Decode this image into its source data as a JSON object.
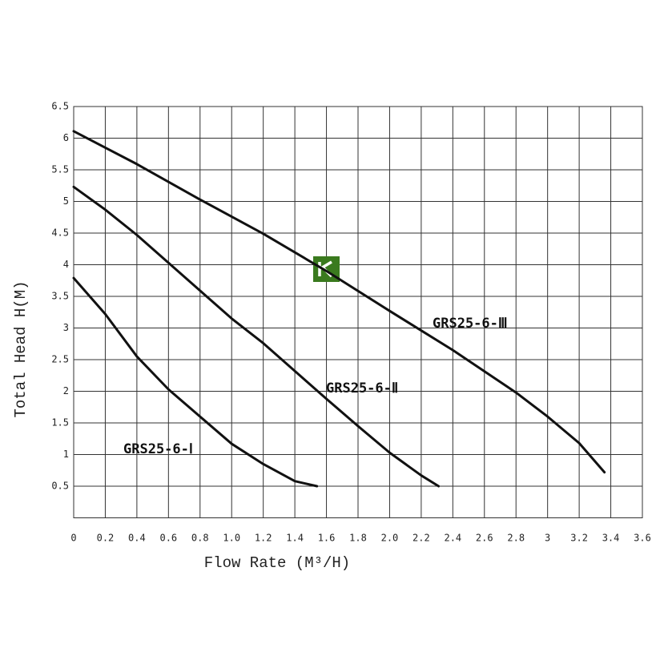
{
  "chart_data": {
    "type": "line",
    "xlabel": "Flow Rate (M³/H)",
    "ylabel": "Total Head H(M)",
    "xlim": [
      0,
      3.6
    ],
    "ylim": [
      0,
      6.5
    ],
    "xticks": [
      0,
      0.2,
      0.4,
      0.6,
      0.8,
      {
        "value": 1,
        "label": "1.0"
      },
      1.2,
      1.4,
      1.6,
      1.8,
      {
        "value": 2,
        "label": "2.0"
      },
      2.2,
      2.4,
      2.6,
      2.8,
      3,
      3.2,
      3.4,
      3.6
    ],
    "yticks": [
      0.5,
      1,
      1.5,
      2,
      2.5,
      3,
      3.5,
      4,
      4.5,
      5,
      5.5,
      6,
      6.5
    ],
    "grid": true,
    "series": [
      {
        "name": "GRS25-6-Ⅰ",
        "color": "#111111",
        "x": [
          0,
          0.2,
          0.4,
          0.6,
          0.8,
          1.0,
          1.2,
          1.4,
          1.54
        ],
        "values": [
          3.79,
          3.22,
          2.55,
          2.03,
          1.6,
          1.17,
          0.85,
          0.58,
          0.5
        ]
      },
      {
        "name": "GRS25-6-Ⅱ",
        "color": "#111111",
        "x": [
          0,
          0.2,
          0.4,
          0.6,
          0.8,
          1.0,
          1.2,
          1.4,
          1.6,
          1.8,
          2.0,
          2.2,
          2.31
        ],
        "values": [
          5.23,
          4.87,
          4.47,
          4.03,
          3.59,
          3.15,
          2.76,
          2.32,
          1.88,
          1.45,
          1.03,
          0.67,
          0.5
        ]
      },
      {
        "name": "GRS25-6-Ⅲ",
        "color": "#111111",
        "x": [
          0,
          0.4,
          0.8,
          1.2,
          1.6,
          2.0,
          2.4,
          2.8,
          3.0,
          3.2,
          3.36
        ],
        "values": [
          6.11,
          5.59,
          5.03,
          4.49,
          3.9,
          3.27,
          2.65,
          1.98,
          1.6,
          1.18,
          0.72
        ]
      }
    ]
  }
}
